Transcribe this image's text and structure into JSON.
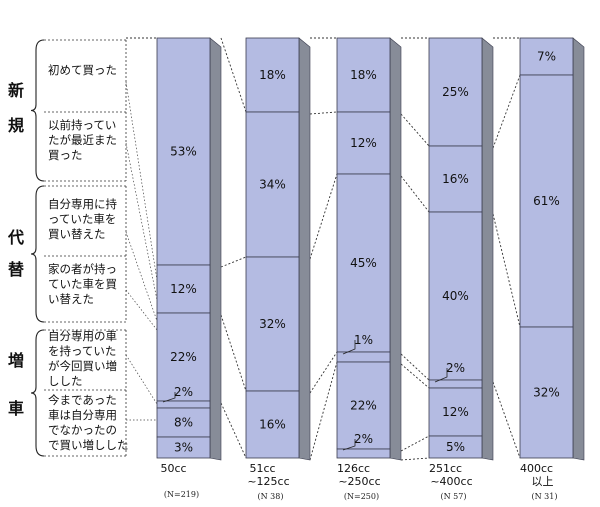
{
  "chart_data": {
    "type": "bar",
    "stacked": true,
    "percent": true,
    "categories": [
      {
        "label": [
          "50cc"
        ],
        "n": "(N=219)"
      },
      {
        "label": [
          "51cc",
          "~125cc"
        ],
        "n": "(N 38)"
      },
      {
        "label": [
          "126cc",
          "~250cc"
        ],
        "n": "(N=250)"
      },
      {
        "label": [
          "251cc",
          "~400cc"
        ],
        "n": "(N 57)"
      },
      {
        "label": [
          "400cc",
          "以上"
        ],
        "n": "(N 31)"
      }
    ],
    "series": [
      {
        "legend": [
          "初めて買った"
        ],
        "values": [
          null,
          18,
          18,
          25,
          7
        ],
        "labels": [
          "",
          "18%",
          "18%",
          "25%",
          "7%"
        ]
      },
      {
        "legend": [
          "以前持ってい",
          "たが最近また",
          "買った"
        ],
        "values": [
          53,
          34,
          12,
          16,
          61
        ],
        "labels": [
          "53%",
          "34%",
          "12%",
          "16%",
          "61%"
        ]
      },
      {
        "legend": [
          "自分専用に持",
          "っていた車を",
          "買い替えた"
        ],
        "values": [
          null,
          null,
          null,
          null,
          null
        ],
        "labels": [
          "",
          "",
          "",
          "",
          ""
        ]
      },
      {
        "legend": [
          "家の者が持っ",
          "ていた車を買",
          "い替えた"
        ],
        "values": [
          12,
          32,
          45,
          40,
          32
        ],
        "labels": [
          "12%",
          "32%",
          "45%",
          "40%",
          "32%"
        ]
      },
      {
        "legend": [
          "自分専用の車",
          "を持っていた",
          "が今回買い増",
          "しした"
        ],
        "values": [
          22,
          16,
          1,
          2,
          null
        ],
        "labels": [
          "22%",
          "16%",
          "1%",
          "2%",
          ""
        ]
      },
      {
        "legend": [
          "今まであった",
          "車は自分専用",
          "でなかったの",
          "で買い増しした"
        ],
        "values": [
          2,
          null,
          22,
          12,
          null
        ],
        "labels": [
          "2%",
          "",
          "22%",
          "12%",
          ""
        ]
      },
      {
        "legend": [],
        "values": [
          8,
          null,
          2,
          5,
          null
        ],
        "labels": [
          "8%",
          "",
          "2%",
          "5%",
          ""
        ]
      },
      {
        "legend": [],
        "values": [
          3,
          null,
          null,
          null,
          null
        ],
        "labels": [
          "3%",
          "",
          "",
          "",
          ""
        ]
      }
    ],
    "groups": [
      {
        "chars": [
          "新",
          "規"
        ]
      },
      {
        "chars": [
          "代",
          "替"
        ]
      },
      {
        "chars": [
          "増",
          "車"
        ]
      }
    ],
    "colors": {
      "bar": "#b4bbe2",
      "bar_side": "#878c98",
      "edge": "#3a3c4e",
      "text": "#111111"
    }
  }
}
